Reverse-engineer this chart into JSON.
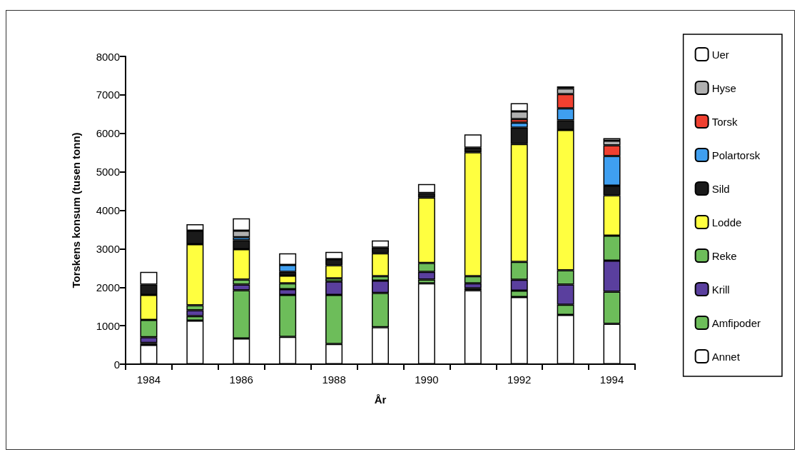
{
  "chart_data": {
    "type": "bar",
    "stacked": true,
    "xlabel": "År",
    "ylabel": "Torskens konsum (tusen tonn)",
    "categories": [
      "1984",
      null,
      "1986",
      null,
      "1988",
      null,
      "1990",
      null,
      "1992",
      null,
      "1994"
    ],
    "ylim": [
      0,
      8000
    ],
    "yticks": [
      0,
      1000,
      2000,
      3000,
      4000,
      5000,
      6000,
      7000,
      8000
    ],
    "grid": false,
    "legend": "right",
    "series": [
      {
        "name": "Annet",
        "color": "#ffffff",
        "values": [
          500,
          1130,
          670,
          710,
          525,
          960,
          2100,
          1920,
          1745,
          1280,
          1050
        ]
      },
      {
        "name": "Amfipoder",
        "color": "#6dbd5a",
        "values": [
          50,
          120,
          1250,
          1090,
          1275,
          890,
          100,
          50,
          165,
          265,
          835
        ]
      },
      {
        "name": "Krill",
        "color": "#5a3f9e",
        "values": [
          150,
          150,
          150,
          150,
          350,
          320,
          200,
          130,
          285,
          525,
          805
        ]
      },
      {
        "name": "Reke",
        "color": "#6dbd5a",
        "values": [
          450,
          130,
          130,
          150,
          80,
          120,
          230,
          190,
          465,
          370,
          650
        ]
      },
      {
        "name": "Lodde",
        "color": "#ffff40",
        "values": [
          650,
          1590,
          790,
          200,
          340,
          590,
          1700,
          3220,
          3060,
          3650,
          1050
        ]
      },
      {
        "name": "Sild",
        "color": "#1a1a1a",
        "values": [
          270,
          350,
          230,
          100,
          160,
          150,
          120,
          120,
          430,
          250,
          250
        ]
      },
      {
        "name": "Polartorsk",
        "color": "#3f9ff0",
        "values": [
          null,
          null,
          80,
          180,
          null,
          null,
          null,
          null,
          130,
          310,
          770
        ]
      },
      {
        "name": "Torsk",
        "color": "#f04030",
        "values": [
          null,
          null,
          null,
          null,
          null,
          null,
          null,
          null,
          90,
          370,
          280
        ]
      },
      {
        "name": "Hyse",
        "color": "#b0b0b0",
        "values": [
          null,
          null,
          170,
          null,
          null,
          null,
          null,
          null,
          200,
          150,
          120
        ]
      },
      {
        "name": "Uer",
        "color": "#ffffff",
        "values": [
          330,
          170,
          320,
          300,
          190,
          185,
          230,
          340,
          215,
          50,
          65
        ]
      }
    ]
  }
}
